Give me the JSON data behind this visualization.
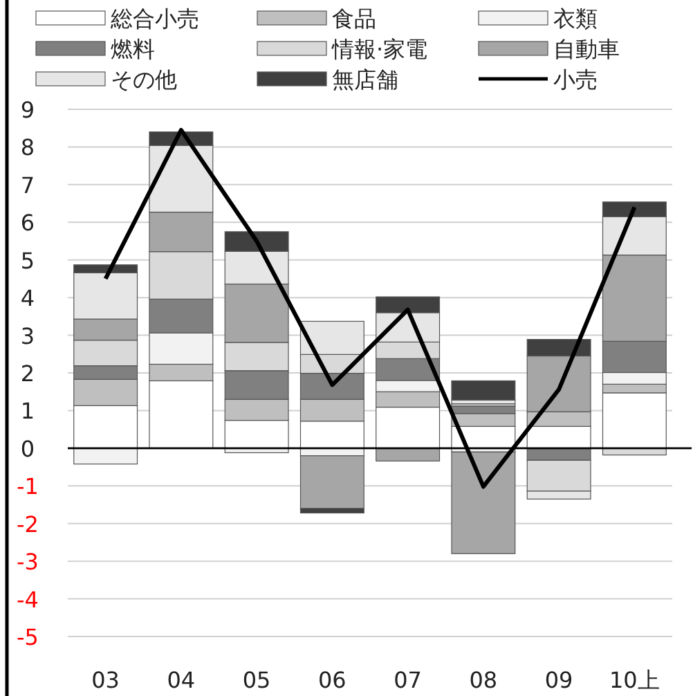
{
  "chart_data": {
    "type": "bar",
    "stacked": true,
    "categories": [
      "03",
      "04",
      "05",
      "06",
      "07",
      "08",
      "09",
      "10上"
    ],
    "ylim": [
      -5,
      9
    ],
    "yticks": [
      -5,
      -4,
      -3,
      -2,
      -1,
      0,
      1,
      2,
      3,
      4,
      5,
      6,
      7,
      8,
      9
    ],
    "grid": "y",
    "legend": "top",
    "series": [
      {
        "name": "総合小売",
        "color": "#ffffff",
        "values": [
          1.13,
          1.79,
          0.74,
          0.72,
          1.09,
          0.58,
          0.58,
          1.47
        ]
      },
      {
        "name": "食品",
        "color": "#bfbfbf",
        "values": [
          0.7,
          0.44,
          0.56,
          0.58,
          0.41,
          0.34,
          0.39,
          0.23
        ]
      },
      {
        "name": "衣類",
        "color": "#f2f2f2",
        "values": [
          -0.42,
          0.83,
          -0.12,
          -0.2,
          0.3,
          -0.1,
          null,
          0.31
        ]
      },
      {
        "name": "燃料",
        "color": "#808080",
        "values": [
          0.36,
          0.9,
          0.76,
          0.69,
          0.58,
          0.2,
          -0.32,
          0.83
        ]
      },
      {
        "name": "情報·家電",
        "color": "#d9d9d9",
        "values": [
          0.68,
          1.26,
          0.75,
          0.5,
          0.44,
          0.06,
          -0.82,
          -0.18
        ]
      },
      {
        "name": "自動車",
        "color": "#a6a6a6",
        "values": [
          0.56,
          1.05,
          1.55,
          -1.4,
          -0.34,
          -2.7,
          1.48,
          2.29
        ]
      },
      {
        "name": "その他",
        "color": "#e6e6e6",
        "values": [
          1.23,
          1.77,
          0.87,
          0.88,
          0.78,
          0.1,
          -0.21,
          1.02
        ]
      },
      {
        "name": "無店舗",
        "color": "#404040",
        "values": [
          0.21,
          0.36,
          0.52,
          -0.12,
          0.42,
          0.51,
          0.44,
          0.39
        ]
      },
      {
        "name": "小売",
        "type": "line",
        "color": "#000000",
        "values": [
          4.5,
          8.45,
          5.5,
          1.68,
          3.68,
          -1.02,
          1.56,
          6.4
        ]
      }
    ]
  }
}
